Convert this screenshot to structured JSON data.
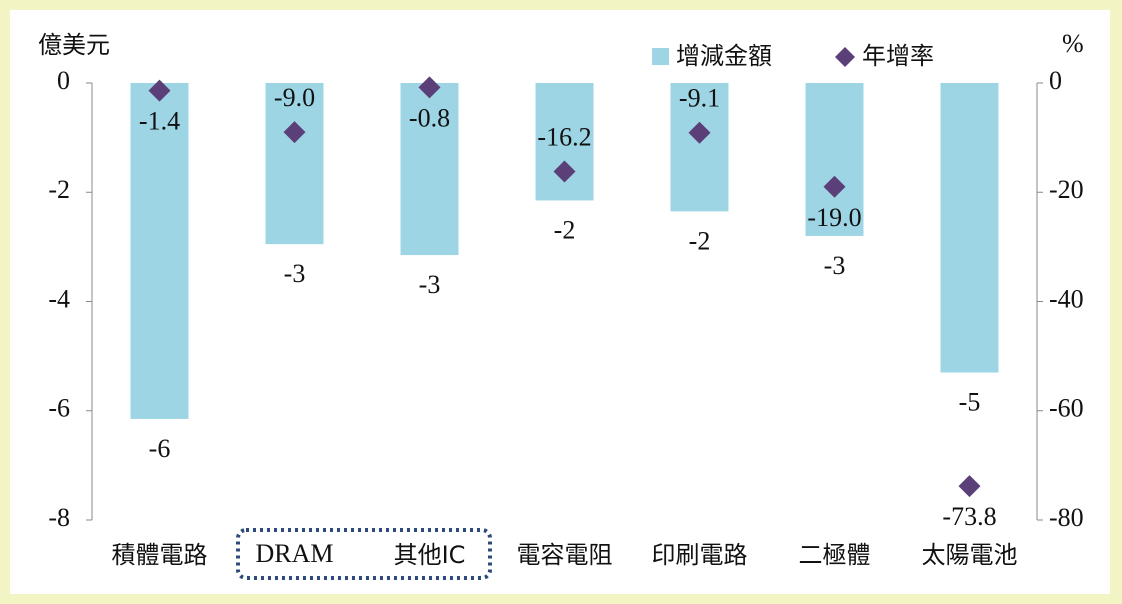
{
  "chart_data": {
    "type": "bar",
    "categories": [
      "積體電路",
      "DRAM",
      "其他IC",
      "電容電阻",
      "印刷電路",
      "二極體",
      "太陽電池"
    ],
    "series": [
      {
        "name": "增減金額",
        "type": "bar",
        "color": "#9dd5e5",
        "values": [
          -6.15,
          -2.95,
          -3.15,
          -2.15,
          -2.35,
          -2.8,
          -5.3
        ],
        "value_labels": [
          "-6",
          "-3",
          "-3",
          "-2",
          "-2",
          "-3",
          "-5"
        ]
      },
      {
        "name": "年增率",
        "type": "scatter",
        "axis": "y2",
        "color": "#5b3f78",
        "values": [
          -1.4,
          -9.0,
          -0.8,
          -16.2,
          -9.1,
          -19.0,
          -73.8
        ],
        "value_labels": [
          "-1.4",
          "-9.0",
          "-0.8",
          "-16.2",
          "-9.1",
          "-19.0",
          "-73.8"
        ]
      }
    ],
    "ylabel": "億美元",
    "y2label": "%",
    "ylim": [
      -8,
      0
    ],
    "yticks": [
      0,
      -2,
      -4,
      -6,
      -8
    ],
    "y2lim": [
      -80,
      0
    ],
    "y2ticks": [
      0,
      -20,
      -40,
      -60,
      -80
    ]
  }
}
